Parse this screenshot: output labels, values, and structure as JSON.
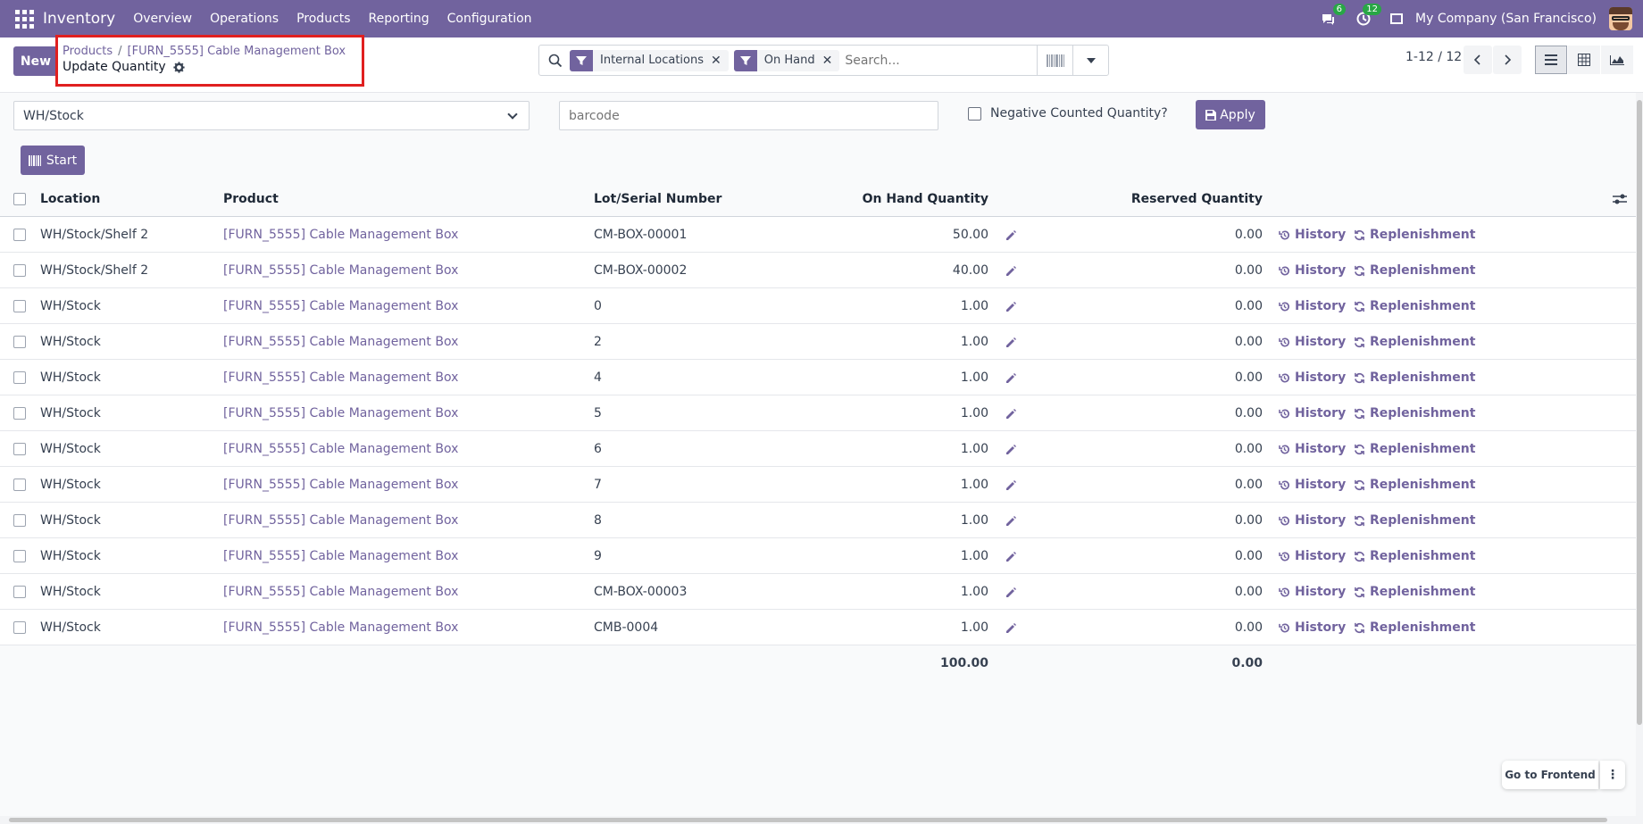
{
  "navbar": {
    "app_name": "Inventory",
    "menu": [
      "Overview",
      "Operations",
      "Products",
      "Reporting",
      "Configuration"
    ],
    "messages_count": "6",
    "activities_count": "12",
    "company": "My Company (San Francisco)"
  },
  "control_panel": {
    "new_label": "New",
    "breadcrumb": [
      "Products",
      "[FURN_5555] Cable Management Box"
    ],
    "breadcrumb_sep": "/",
    "title": "Update Quantity",
    "facets": [
      "Internal Locations",
      "On Hand"
    ],
    "search_placeholder": "Search...",
    "pager": "1-12 / 12"
  },
  "filters": {
    "location": "WH/Stock",
    "barcode_placeholder": "barcode",
    "negative_label": "Negative Counted Quantity?",
    "apply_label": "Apply",
    "start_label": "Start"
  },
  "table": {
    "headers": {
      "location": "Location",
      "product": "Product",
      "lot": "Lot/Serial Number",
      "on_hand": "On Hand Quantity",
      "reserved": "Reserved Quantity"
    },
    "history_label": "History",
    "replenishment_label": "Replenishment",
    "rows": [
      {
        "location": "WH/Stock/Shelf 2",
        "product": "[FURN_5555] Cable Management Box",
        "lot": "CM-BOX-00001",
        "on_hand": "50.00",
        "reserved": "0.00"
      },
      {
        "location": "WH/Stock/Shelf 2",
        "product": "[FURN_5555] Cable Management Box",
        "lot": "CM-BOX-00002",
        "on_hand": "40.00",
        "reserved": "0.00"
      },
      {
        "location": "WH/Stock",
        "product": "[FURN_5555] Cable Management Box",
        "lot": "0",
        "on_hand": "1.00",
        "reserved": "0.00"
      },
      {
        "location": "WH/Stock",
        "product": "[FURN_5555] Cable Management Box",
        "lot": "2",
        "on_hand": "1.00",
        "reserved": "0.00"
      },
      {
        "location": "WH/Stock",
        "product": "[FURN_5555] Cable Management Box",
        "lot": "4",
        "on_hand": "1.00",
        "reserved": "0.00"
      },
      {
        "location": "WH/Stock",
        "product": "[FURN_5555] Cable Management Box",
        "lot": "5",
        "on_hand": "1.00",
        "reserved": "0.00"
      },
      {
        "location": "WH/Stock",
        "product": "[FURN_5555] Cable Management Box",
        "lot": "6",
        "on_hand": "1.00",
        "reserved": "0.00"
      },
      {
        "location": "WH/Stock",
        "product": "[FURN_5555] Cable Management Box",
        "lot": "7",
        "on_hand": "1.00",
        "reserved": "0.00"
      },
      {
        "location": "WH/Stock",
        "product": "[FURN_5555] Cable Management Box",
        "lot": "8",
        "on_hand": "1.00",
        "reserved": "0.00"
      },
      {
        "location": "WH/Stock",
        "product": "[FURN_5555] Cable Management Box",
        "lot": "9",
        "on_hand": "1.00",
        "reserved": "0.00"
      },
      {
        "location": "WH/Stock",
        "product": "[FURN_5555] Cable Management Box",
        "lot": "CM-BOX-00003",
        "on_hand": "1.00",
        "reserved": "0.00"
      },
      {
        "location": "WH/Stock",
        "product": "[FURN_5555] Cable Management Box",
        "lot": "CMB-0004",
        "on_hand": "1.00",
        "reserved": "0.00"
      }
    ],
    "total_on_hand": "100.00",
    "total_reserved": "0.00"
  },
  "frontend_label": "Go to Frontend",
  "colors": {
    "brand": "#71639e",
    "badge": "#28a745"
  }
}
